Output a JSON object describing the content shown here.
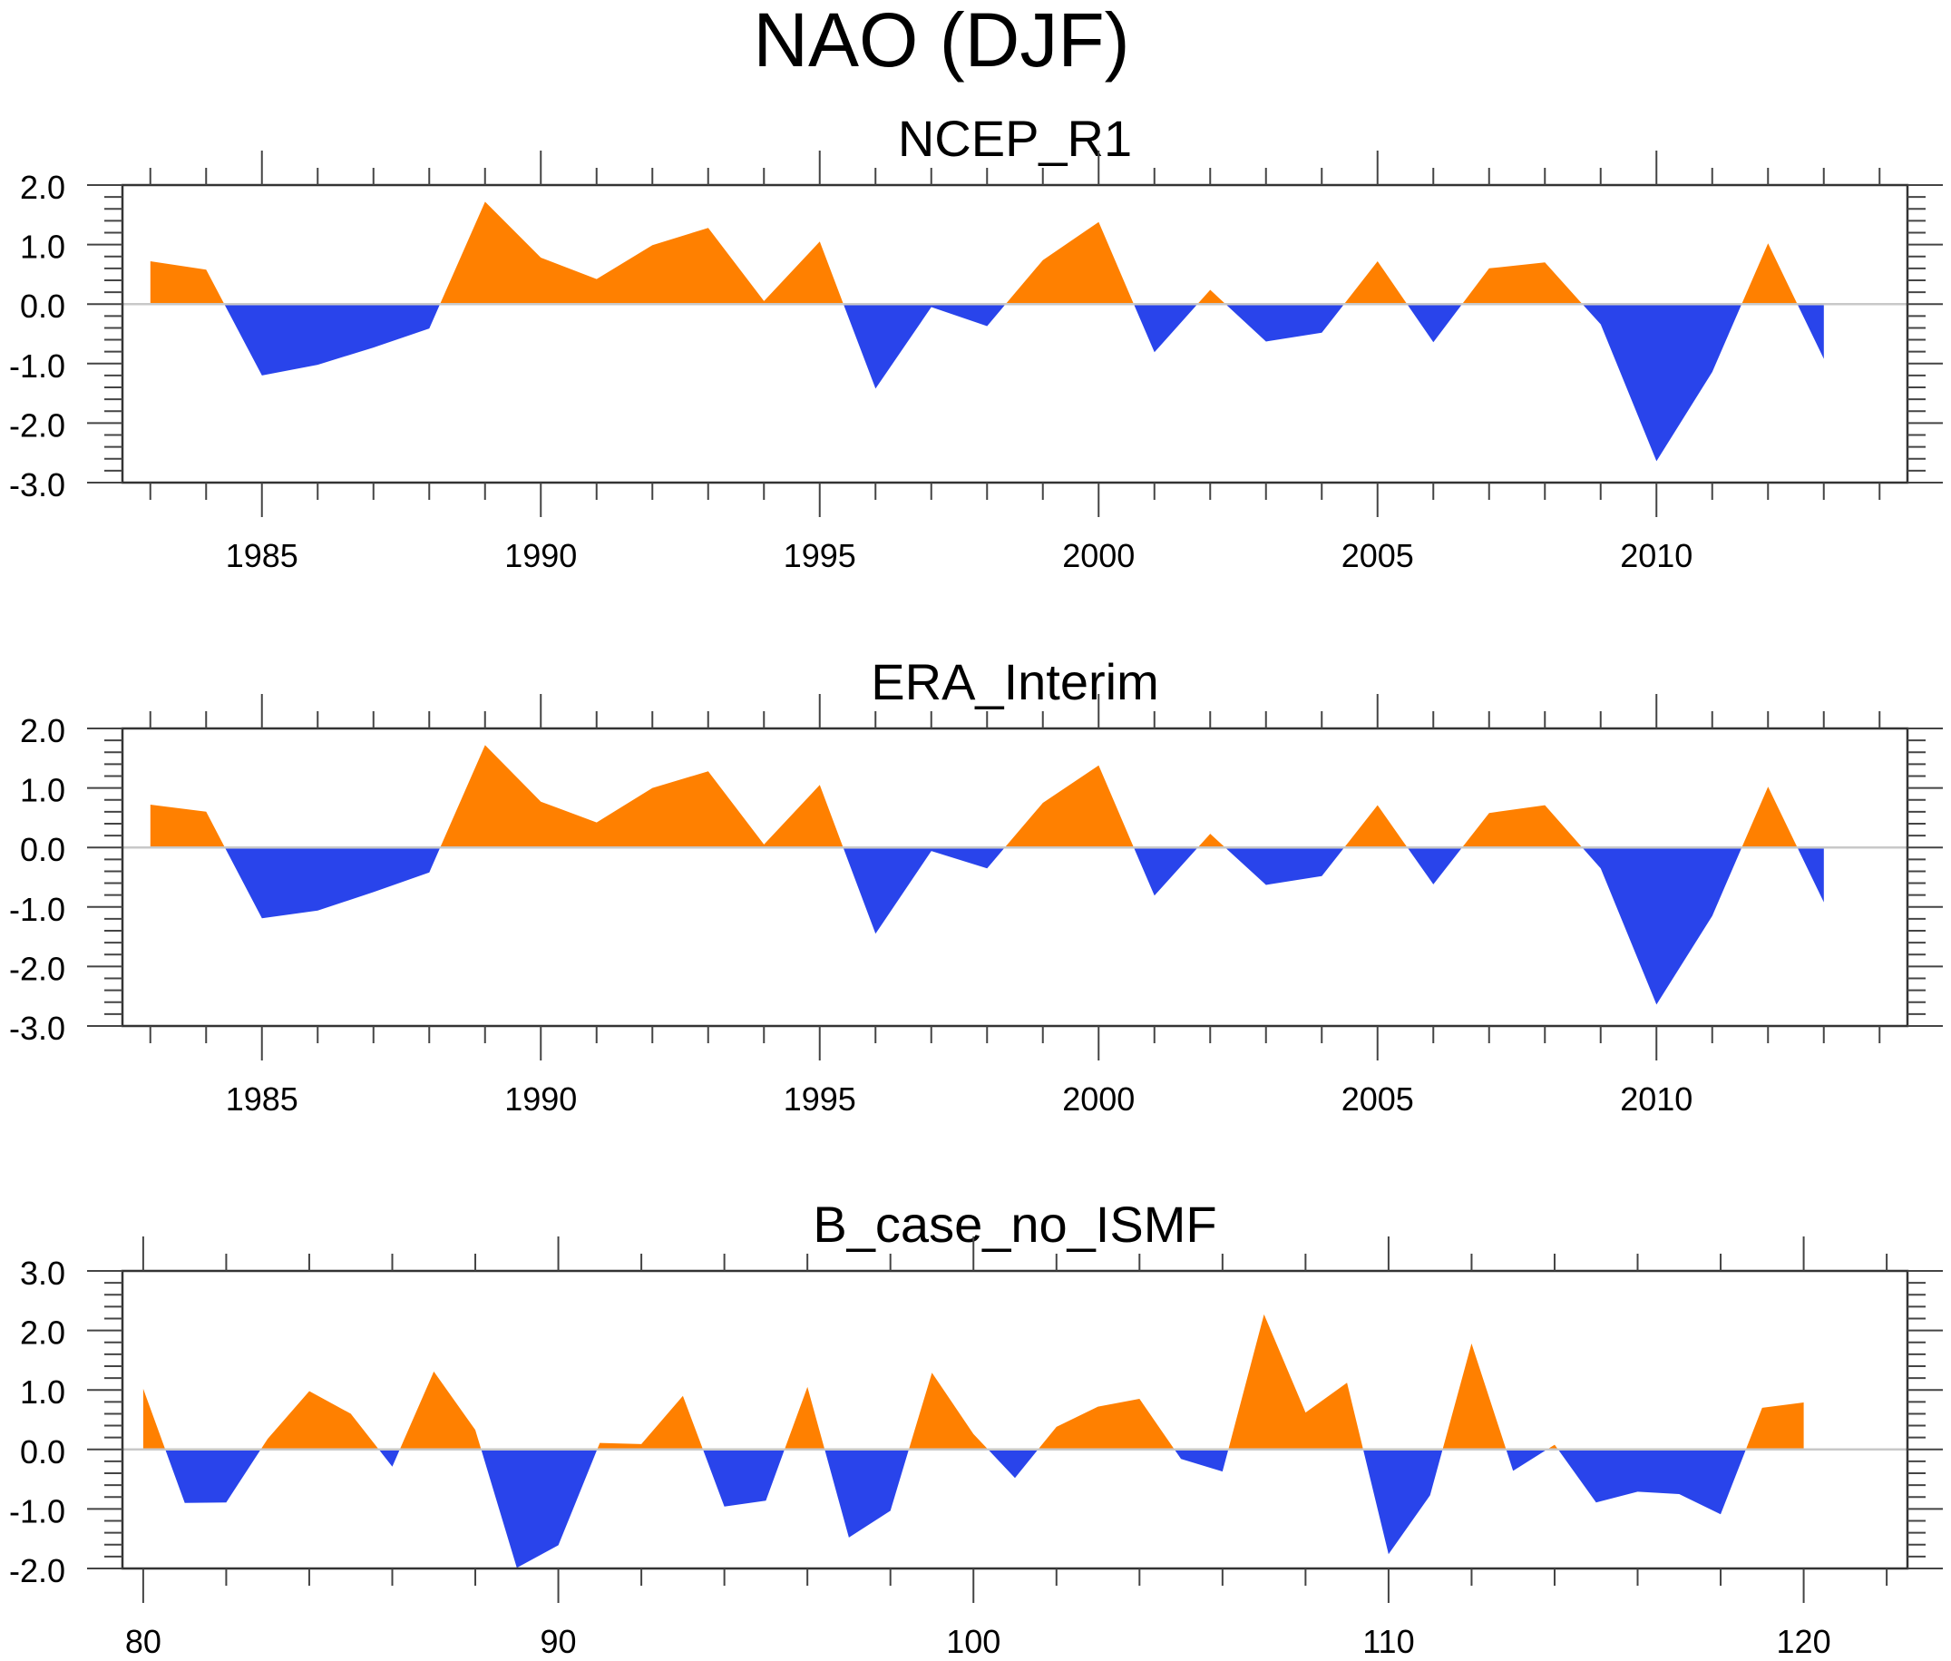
{
  "figure_title": "NAO (DJF)",
  "colors": {
    "positive": "#ff8000",
    "negative": "#2944eb",
    "zero_line": "#c8c8c8",
    "frame": "#333333"
  },
  "chart_data": [
    {
      "type": "area",
      "title": "NCEP_R1",
      "xlabel": "",
      "ylabel": "",
      "xlim": [
        1982.5,
        2014.5
      ],
      "ylim": [
        -3.0,
        2.0
      ],
      "x_major_ticks": [
        1985,
        1990,
        1995,
        2000,
        2005,
        2010
      ],
      "x_tick_labels": [
        "1985",
        "1990",
        "1995",
        "2000",
        "2005",
        "2010"
      ],
      "x_minor_step": 1,
      "y_major_ticks": [
        2.0,
        1.0,
        0.0,
        -1.0,
        -2.0,
        -3.0
      ],
      "y_tick_labels": [
        "2.0",
        "1.0",
        "0.0",
        "-1.0",
        "-2.0",
        "-3.0"
      ],
      "y_minor_step": 0.2,
      "reference_line": 0,
      "fill_above": "orange",
      "fill_below": "blue",
      "x": [
        1983,
        1984,
        1985,
        1986,
        1987,
        1988,
        1989,
        1990,
        1991,
        1992,
        1993,
        1994,
        1995,
        1996,
        1997,
        1998,
        1999,
        2000,
        2001,
        2002,
        2003,
        2004,
        2005,
        2006,
        2007,
        2008,
        2009,
        2010,
        2011,
        2012,
        2013
      ],
      "values": [
        0.72,
        0.58,
        -1.2,
        -1.02,
        -0.73,
        -0.41,
        1.72,
        0.78,
        0.42,
        0.99,
        1.28,
        0.05,
        1.05,
        -1.42,
        -0.05,
        -0.37,
        0.74,
        1.38,
        -0.81,
        0.24,
        -0.63,
        -0.48,
        0.72,
        -0.64,
        0.6,
        0.7,
        -0.34,
        -2.64,
        -1.14,
        1.02,
        -0.92
      ]
    },
    {
      "type": "area",
      "title": "ERA_Interim",
      "xlabel": "",
      "ylabel": "",
      "xlim": [
        1982.5,
        2014.5
      ],
      "ylim": [
        -3.0,
        2.0
      ],
      "x_major_ticks": [
        1985,
        1990,
        1995,
        2000,
        2005,
        2010
      ],
      "x_tick_labels": [
        "1985",
        "1990",
        "1995",
        "2000",
        "2005",
        "2010"
      ],
      "x_minor_step": 1,
      "y_major_ticks": [
        2.0,
        1.0,
        0.0,
        -1.0,
        -2.0,
        -3.0
      ],
      "y_tick_labels": [
        "2.0",
        "1.0",
        "0.0",
        "-1.0",
        "-2.0",
        "-3.0"
      ],
      "y_minor_step": 0.2,
      "reference_line": 0,
      "fill_above": "orange",
      "fill_below": "blue",
      "x": [
        1983,
        1984,
        1985,
        1986,
        1987,
        1988,
        1989,
        1990,
        1991,
        1992,
        1993,
        1994,
        1995,
        1996,
        1997,
        1998,
        1999,
        2000,
        2001,
        2002,
        2003,
        2004,
        2005,
        2006,
        2007,
        2008,
        2009,
        2010,
        2011,
        2012,
        2013
      ],
      "values": [
        0.72,
        0.6,
        -1.19,
        -1.06,
        -0.75,
        -0.42,
        1.72,
        0.77,
        0.42,
        1.0,
        1.28,
        0.05,
        1.05,
        -1.45,
        -0.06,
        -0.35,
        0.75,
        1.38,
        -0.81,
        0.23,
        -0.63,
        -0.48,
        0.71,
        -0.62,
        0.58,
        0.71,
        -0.35,
        -2.64,
        -1.15,
        1.02,
        -0.92
      ]
    },
    {
      "type": "area",
      "title": "B_case_no_ISMF",
      "xlabel": "",
      "ylabel": "",
      "xlim": [
        79.5,
        122.5
      ],
      "ylim": [
        -2.0,
        3.0
      ],
      "x_major_ticks": [
        80,
        90,
        100,
        110,
        120
      ],
      "x_tick_labels": [
        "80",
        "90",
        "100",
        "110",
        "120"
      ],
      "x_minor_step": 2,
      "y_major_ticks": [
        3.0,
        2.0,
        1.0,
        0.0,
        -1.0,
        -2.0
      ],
      "y_tick_labels": [
        "3.0",
        "2.0",
        "1.0",
        "0.0",
        "-1.0",
        "-2.0"
      ],
      "y_minor_step": 0.2,
      "reference_line": 0,
      "fill_above": "orange",
      "fill_below": "blue",
      "x": [
        80,
        81,
        82,
        83,
        84,
        85,
        86,
        87,
        88,
        89,
        90,
        91,
        92,
        93,
        94,
        95,
        96,
        97,
        98,
        99,
        100,
        101,
        102,
        103,
        104,
        105,
        106,
        107,
        108,
        109,
        110,
        111,
        112,
        113,
        114,
        115,
        116,
        117,
        118,
        119,
        120
      ],
      "values": [
        1.02,
        -0.9,
        -0.89,
        0.18,
        0.98,
        0.6,
        -0.29,
        1.31,
        0.33,
        -1.99,
        -1.61,
        0.11,
        0.09,
        0.9,
        -0.96,
        -0.86,
        1.05,
        -1.48,
        -1.03,
        1.29,
        0.26,
        -0.48,
        0.38,
        0.72,
        0.85,
        -0.16,
        -0.37,
        2.27,
        0.62,
        1.12,
        -1.76,
        -0.77,
        1.78,
        -0.36,
        0.08,
        -0.89,
        -0.71,
        -0.75,
        -1.09,
        0.7,
        0.79
      ]
    }
  ]
}
